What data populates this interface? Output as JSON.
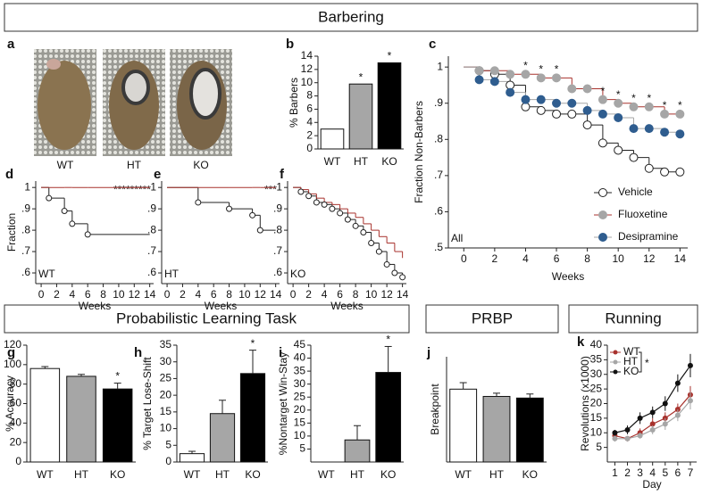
{
  "headers": [
    "Barbering",
    "Probabilistic Learning Task",
    "PRBP",
    "Running"
  ],
  "photos": {
    "label": "a",
    "captions": [
      "WT",
      "HT",
      "KO"
    ]
  },
  "chart_data": [
    {
      "type": "bar",
      "label": "b",
      "ylabel": "% Barbers",
      "categories": [
        "WT",
        "HT",
        "KO"
      ],
      "values": [
        3,
        9.8,
        13
      ],
      "colors": [
        "#ffffff",
        "#a6a6a6",
        "#000000"
      ],
      "ylim": [
        0,
        14
      ],
      "yticks": [
        0,
        2,
        4,
        6,
        8,
        10,
        12,
        14
      ],
      "annotations": [
        {
          "text": "*",
          "category": "HT"
        },
        {
          "text": "*",
          "category": "KO"
        }
      ]
    },
    {
      "type": "line",
      "step": true,
      "label": "c",
      "ylabel": "Fraction Non-Barbers",
      "xlabel": "Weeks",
      "inset_label": "All",
      "x": [
        0,
        1,
        2,
        3,
        4,
        5,
        6,
        7,
        8,
        9,
        10,
        11,
        12,
        13,
        14
      ],
      "xlim": [
        -1,
        14.5
      ],
      "xticks": [
        0,
        2,
        4,
        6,
        8,
        10,
        12,
        14
      ],
      "ylim": [
        0.5,
        1.03
      ],
      "yticks": [
        1,
        {
          "value": 0.9,
          "label": ".9"
        },
        {
          "value": 0.8,
          "label": ".8"
        },
        {
          "value": 0.7,
          "label": ".7"
        },
        {
          "value": 0.6,
          "label": ".6"
        },
        {
          "value": 0.5,
          "label": ".5"
        }
      ],
      "legend": "lower right",
      "series": [
        {
          "name": "Vehicle",
          "color": "#222222",
          "marker": "#ffffff",
          "values": [
            1,
            0.99,
            0.98,
            0.95,
            0.89,
            0.88,
            0.87,
            0.87,
            0.84,
            0.79,
            0.77,
            0.75,
            0.72,
            0.71,
            0.71
          ]
        },
        {
          "name": "Fluoxetine",
          "color": "#a8322d",
          "marker": "#a6a6a6",
          "values": [
            1,
            0.99,
            0.99,
            0.98,
            0.98,
            0.97,
            0.97,
            0.94,
            0.94,
            0.91,
            0.9,
            0.89,
            0.89,
            0.87,
            0.87
          ]
        },
        {
          "name": "Desipramine",
          "color": "#a6a6a6",
          "marker": "#2f5d8f",
          "values": [
            1,
            0.965,
            0.96,
            0.93,
            0.91,
            0.91,
            0.9,
            0.9,
            0.88,
            0.87,
            0.86,
            0.83,
            0.83,
            0.82,
            0.815
          ]
        }
      ],
      "annotations": [
        {
          "text": "*",
          "x": 4
        },
        {
          "text": "*",
          "x": 5
        },
        {
          "text": "*",
          "x": 6
        },
        {
          "text": "*",
          "x": 9
        },
        {
          "text": "*",
          "x": 10
        },
        {
          "text": "*",
          "x": 11
        },
        {
          "text": "*",
          "x": 12
        },
        {
          "text": "*",
          "x": 13
        },
        {
          "text": "*",
          "x": 14
        }
      ]
    },
    {
      "type": "line",
      "step": true,
      "label": "d",
      "ylabel": "Fraction",
      "xlabel": "Weeks",
      "inset_label": "WT",
      "annotation": "*********",
      "x": [
        0,
        1,
        3,
        4,
        6
      ],
      "xlim": [
        -0.7,
        14.5
      ],
      "xticks": [
        0,
        2,
        4,
        6,
        8,
        10,
        12,
        14
      ],
      "ylim": [
        0.55,
        1.03
      ],
      "yticks": [
        1,
        {
          "value": 0.9,
          "label": ".9"
        },
        {
          "value": 0.8,
          "label": ".8"
        },
        {
          "value": 0.7,
          "label": ".7"
        },
        {
          "value": 0.6,
          "label": ".6"
        }
      ],
      "series": [
        {
          "color": "#222222",
          "marker": "#ffffff",
          "values": [
            1,
            0.95,
            0.89,
            0.83,
            0.78
          ]
        },
        {
          "color": "#a8322d",
          "values": [
            1,
            1,
            1,
            1,
            1
          ]
        }
      ]
    },
    {
      "type": "line",
      "step": true,
      "label": "e",
      "xlabel": "Weeks",
      "inset_label": "HT",
      "annotation": "***",
      "x": [
        0,
        4,
        8,
        11,
        12
      ],
      "xlim": [
        -0.7,
        14.5
      ],
      "xticks": [
        0,
        2,
        4,
        6,
        8,
        10,
        12,
        14
      ],
      "ylim": [
        0.55,
        1.03
      ],
      "yticks": [
        1,
        {
          "value": 0.9,
          "label": ".9"
        },
        {
          "value": 0.8,
          "label": ".8"
        },
        {
          "value": 0.7,
          "label": ".7"
        },
        {
          "value": 0.6,
          "label": ".6"
        }
      ],
      "series": [
        {
          "color": "#222222",
          "marker": "#ffffff",
          "values": [
            1,
            0.93,
            0.9,
            0.87,
            0.8
          ]
        },
        {
          "color": "#a8322d",
          "values": [
            1,
            1,
            1,
            1,
            1
          ]
        }
      ]
    },
    {
      "type": "line",
      "step": true,
      "label": "f",
      "xlabel": "Weeks",
      "inset_label": "KO",
      "x": [
        0,
        1,
        2,
        3,
        4,
        5,
        6,
        7,
        8,
        9,
        10,
        11,
        12,
        13,
        14
      ],
      "xlim": [
        -0.7,
        14.5
      ],
      "xticks": [
        0,
        2,
        4,
        6,
        8,
        10,
        12,
        14
      ],
      "ylim": [
        0.55,
        1.03
      ],
      "yticks": [
        1,
        {
          "value": 0.9,
          "label": ".9"
        },
        {
          "value": 0.8,
          "label": ".8"
        },
        {
          "value": 0.7,
          "label": ".7"
        },
        {
          "value": 0.6,
          "label": ".6"
        }
      ],
      "series": [
        {
          "color": "#222222",
          "marker": "#ffffff",
          "values": [
            1,
            0.98,
            0.96,
            0.93,
            0.92,
            0.9,
            0.88,
            0.85,
            0.82,
            0.79,
            0.74,
            0.7,
            0.64,
            0.6,
            0.58
          ]
        },
        {
          "color": "#a8322d",
          "values": [
            1,
            0.99,
            0.97,
            0.95,
            0.93,
            0.92,
            0.9,
            0.88,
            0.86,
            0.83,
            0.8,
            0.77,
            0.74,
            0.7,
            0.67
          ]
        }
      ]
    },
    {
      "type": "bar",
      "label": "g",
      "ylabel": "% Accuracy",
      "categories": [
        "WT",
        "HT",
        "KO"
      ],
      "values": [
        96,
        88,
        75
      ],
      "errors": [
        2,
        2,
        6
      ],
      "colors": [
        "#ffffff",
        "#a6a6a6",
        "#000000"
      ],
      "ylim": [
        0,
        120
      ],
      "yticks": [
        0,
        20,
        40,
        60,
        80,
        100,
        120
      ],
      "annotations": [
        {
          "text": "*",
          "category": "KO"
        }
      ]
    },
    {
      "type": "bar",
      "label": "h",
      "ylabel": "% Target Lose-Shift",
      "categories": [
        "WT",
        "HT",
        "KO"
      ],
      "values": [
        2.5,
        14.5,
        26.5
      ],
      "errors": [
        0.7,
        4,
        7
      ],
      "colors": [
        "#ffffff",
        "#a6a6a6",
        "#000000"
      ],
      "ylim": [
        0,
        35
      ],
      "yticks": [
        0,
        5,
        10,
        15,
        20,
        25,
        30,
        35
      ],
      "annotations": [
        {
          "text": "*",
          "category": "KO"
        }
      ]
    },
    {
      "type": "bar",
      "label": "i",
      "ylabel": "%Nontarget Win-Stay",
      "categories": [
        "WT",
        "HT",
        "KO"
      ],
      "values": [
        0,
        8.5,
        34.5
      ],
      "errors": [
        0,
        5.5,
        10
      ],
      "colors": [
        "#ffffff",
        "#a6a6a6",
        "#000000"
      ],
      "ylim": [
        0,
        45
      ],
      "yticks": [
        5,
        10,
        15,
        20,
        25,
        30,
        35,
        40,
        45
      ],
      "annotations": [
        {
          "text": "*",
          "category": "KO"
        }
      ]
    },
    {
      "type": "bar",
      "label": "j",
      "ylabel": "Breakpoint",
      "categories": [
        "WT",
        "HT",
        "KO"
      ],
      "values": [
        9,
        8.1,
        7.9
      ],
      "errors": [
        0.8,
        0.4,
        0.5
      ],
      "colors": [
        "#ffffff",
        "#a6a6a6",
        "#000000"
      ],
      "ylim": [
        0,
        13
      ]
    },
    {
      "type": "line",
      "label": "k",
      "ylabel": "Revolutions (x1000)",
      "xlabel": "Day",
      "x": [
        1,
        2,
        3,
        4,
        5,
        6,
        7
      ],
      "xlim": [
        0.4,
        7.5
      ],
      "xticks": [
        1,
        2,
        3,
        4,
        5,
        6,
        7
      ],
      "ylim": [
        0,
        40
      ],
      "yticks": [
        5,
        10,
        15,
        20,
        25,
        30,
        35,
        40
      ],
      "legend": "upper left",
      "legend_annotation": "*",
      "series": [
        {
          "name": "WT",
          "color": "#a8322d",
          "values": [
            9,
            8,
            10,
            13,
            15,
            18,
            23
          ],
          "errors": [
            1,
            1,
            1.5,
            2,
            2,
            2,
            3
          ]
        },
        {
          "name": "HT",
          "color": "#a6a6a6",
          "values": [
            8,
            8,
            9,
            11,
            13,
            16,
            21
          ],
          "errors": [
            1,
            1,
            1,
            1.5,
            2,
            2,
            3
          ]
        },
        {
          "name": "KO",
          "color": "#111111",
          "values": [
            10,
            11,
            15,
            17,
            20,
            27,
            33
          ],
          "errors": [
            1,
            1.5,
            2,
            2,
            2.5,
            3,
            4
          ]
        }
      ]
    }
  ]
}
